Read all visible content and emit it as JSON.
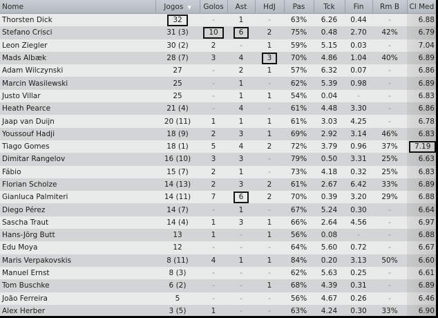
{
  "columns": [
    {
      "key": "name",
      "label": "Nome"
    },
    {
      "key": "apps",
      "label": "Jogos",
      "sorted": "descending"
    },
    {
      "key": "goals",
      "label": "Golos"
    },
    {
      "key": "ast",
      "label": "Ast"
    },
    {
      "key": "potm",
      "label": "HdJ"
    },
    {
      "key": "pas",
      "label": "Pas"
    },
    {
      "key": "tck",
      "label": "Tck"
    },
    {
      "key": "fin",
      "label": "Fin"
    },
    {
      "key": "rmb",
      "label": "Rm B"
    },
    {
      "key": "rating",
      "label": "Cl Med"
    }
  ],
  "rows": [
    {
      "name": "Thorsten Dick",
      "apps": "32",
      "goals": "-",
      "ast": "1",
      "potm": "-",
      "pas": "63%",
      "tck": "6.26",
      "fin": "0.44",
      "rmb": "-",
      "rating": "6.88",
      "highlight": [
        "apps"
      ]
    },
    {
      "name": "Stefano Crisci",
      "apps": "31 (3)",
      "goals": "10",
      "ast": "6",
      "potm": "2",
      "pas": "75%",
      "tck": "0.48",
      "fin": "2.70",
      "rmb": "42%",
      "rating": "6.79",
      "highlight": [
        "goals",
        "ast"
      ]
    },
    {
      "name": "Leon Ziegler",
      "apps": "30 (2)",
      "goals": "2",
      "ast": "-",
      "potm": "1",
      "pas": "59%",
      "tck": "5.15",
      "fin": "0.03",
      "rmb": "-",
      "rating": "7.04"
    },
    {
      "name": "Mads Albæk",
      "apps": "28 (7)",
      "goals": "3",
      "ast": "4",
      "potm": "3",
      "pas": "70%",
      "tck": "4.86",
      "fin": "1.04",
      "rmb": "40%",
      "rating": "6.89",
      "highlight": [
        "potm"
      ]
    },
    {
      "name": "Adam Wilczynski",
      "apps": "27",
      "goals": "-",
      "ast": "2",
      "potm": "1",
      "pas": "57%",
      "tck": "6.32",
      "fin": "0.07",
      "rmb": "-",
      "rating": "6.86"
    },
    {
      "name": "Marcin Wasilewski",
      "apps": "25",
      "goals": "-",
      "ast": "1",
      "potm": "-",
      "pas": "62%",
      "tck": "5.39",
      "fin": "0.98",
      "rmb": "-",
      "rating": "6.89"
    },
    {
      "name": "Justo Villar",
      "apps": "25",
      "goals": "-",
      "ast": "1",
      "potm": "1",
      "pas": "54%",
      "tck": "0.04",
      "fin": "-",
      "rmb": "-",
      "rating": "6.83"
    },
    {
      "name": "Heath Pearce",
      "apps": "21 (4)",
      "goals": "-",
      "ast": "4",
      "potm": "-",
      "pas": "61%",
      "tck": "4.48",
      "fin": "3.30",
      "rmb": "-",
      "rating": "6.86"
    },
    {
      "name": "Jaap van Duijn",
      "apps": "20 (11)",
      "goals": "1",
      "ast": "1",
      "potm": "1",
      "pas": "61%",
      "tck": "3.03",
      "fin": "4.25",
      "rmb": "-",
      "rating": "6.78"
    },
    {
      "name": "Youssouf Hadji",
      "apps": "18 (9)",
      "goals": "2",
      "ast": "3",
      "potm": "1",
      "pas": "69%",
      "tck": "2.92",
      "fin": "3.14",
      "rmb": "46%",
      "rating": "6.83"
    },
    {
      "name": "Tiago Gomes",
      "apps": "18 (1)",
      "goals": "5",
      "ast": "4",
      "potm": "2",
      "pas": "72%",
      "tck": "3.79",
      "fin": "0.96",
      "rmb": "37%",
      "rating": "7.19",
      "highlight": [
        "rating"
      ]
    },
    {
      "name": "Dimitar Rangelov",
      "apps": "16 (10)",
      "goals": "3",
      "ast": "3",
      "potm": "-",
      "pas": "79%",
      "tck": "0.50",
      "fin": "3.31",
      "rmb": "25%",
      "rating": "6.63"
    },
    {
      "name": "Fábio",
      "apps": "15 (7)",
      "goals": "2",
      "ast": "1",
      "potm": "-",
      "pas": "73%",
      "tck": "4.18",
      "fin": "0.32",
      "rmb": "25%",
      "rating": "6.83"
    },
    {
      "name": "Florian Scholze",
      "apps": "14 (13)",
      "goals": "2",
      "ast": "3",
      "potm": "2",
      "pas": "61%",
      "tck": "2.67",
      "fin": "6.42",
      "rmb": "33%",
      "rating": "6.89"
    },
    {
      "name": "Gianluca Palmiteri",
      "apps": "14 (11)",
      "goals": "7",
      "ast": "6",
      "potm": "2",
      "pas": "70%",
      "tck": "0.39",
      "fin": "3.20",
      "rmb": "29%",
      "rating": "6.88",
      "highlight": [
        "ast"
      ]
    },
    {
      "name": "Diego Pérez",
      "apps": "14 (7)",
      "goals": "-",
      "ast": "1",
      "potm": "-",
      "pas": "67%",
      "tck": "5.24",
      "fin": "0.30",
      "rmb": "-",
      "rating": "6.64"
    },
    {
      "name": "Sascha Traut",
      "apps": "14 (4)",
      "goals": "1",
      "ast": "3",
      "potm": "1",
      "pas": "66%",
      "tck": "2.64",
      "fin": "4.56",
      "rmb": "-",
      "rating": "6.97"
    },
    {
      "name": "Hans-Jörg Butt",
      "apps": "13",
      "goals": "1",
      "ast": "-",
      "potm": "1",
      "pas": "56%",
      "tck": "0.08",
      "fin": "-",
      "rmb": "-",
      "rating": "6.88"
    },
    {
      "name": "Edu Moya",
      "apps": "12",
      "goals": "-",
      "ast": "-",
      "potm": "-",
      "pas": "64%",
      "tck": "5.60",
      "fin": "0.72",
      "rmb": "-",
      "rating": "6.67"
    },
    {
      "name": "Maris Verpakovskis",
      "apps": "8 (11)",
      "goals": "4",
      "ast": "1",
      "potm": "1",
      "pas": "84%",
      "tck": "0.20",
      "fin": "3.13",
      "rmb": "50%",
      "rating": "6.60"
    },
    {
      "name": "Manuel Ernst",
      "apps": "8 (3)",
      "goals": "-",
      "ast": "-",
      "potm": "-",
      "pas": "62%",
      "tck": "5.63",
      "fin": "0.25",
      "rmb": "-",
      "rating": "6.61"
    },
    {
      "name": "Tom Buschke",
      "apps": "6 (2)",
      "goals": "-",
      "ast": "-",
      "potm": "1",
      "pas": "68%",
      "tck": "4.39",
      "fin": "0.31",
      "rmb": "-",
      "rating": "6.89"
    },
    {
      "name": "João Ferreira",
      "apps": "5",
      "goals": "-",
      "ast": "-",
      "potm": "-",
      "pas": "56%",
      "tck": "4.67",
      "fin": "0.26",
      "rmb": "-",
      "rating": "6.46"
    },
    {
      "name": "Alex Herber",
      "apps": "3 (5)",
      "goals": "1",
      "ast": "-",
      "potm": "-",
      "pas": "63%",
      "tck": "4.24",
      "fin": "0.30",
      "rmb": "33%",
      "rating": "6.90"
    }
  ]
}
